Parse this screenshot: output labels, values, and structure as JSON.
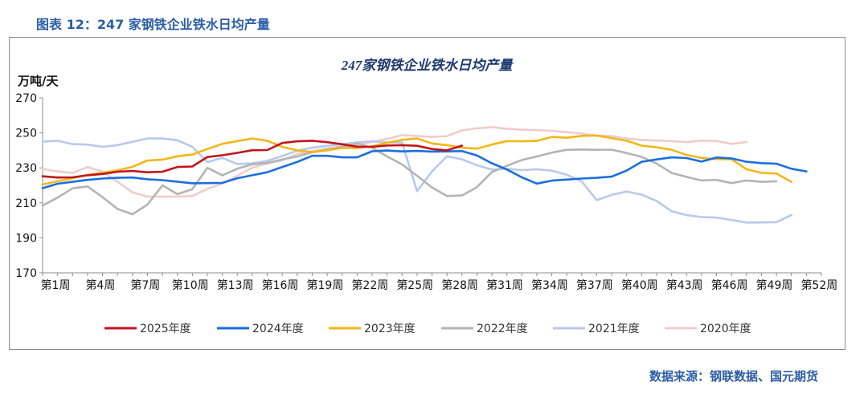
{
  "figure_caption": "图表 12：247 家钢铁企业铁水日均产量",
  "source_note": "数据来源：钢联数据、国元期货",
  "colors": {
    "caption": "#2b5da6",
    "title": "#1f3b70"
  },
  "chart_data": {
    "type": "line",
    "title": "247家钢铁企业铁水日均产量",
    "ylabel": "万吨/天",
    "xlabel": "",
    "ylim": [
      170,
      270
    ],
    "yticks": [
      170,
      190,
      210,
      230,
      250,
      270
    ],
    "x_tick_labels": [
      "第1周",
      "第4周",
      "第7周",
      "第10周",
      "第13周",
      "第16周",
      "第19周",
      "第22周",
      "第25周",
      "第28周",
      "第31周",
      "第34周",
      "第37周",
      "第40周",
      "第43周",
      "第46周",
      "第49周",
      "第52周"
    ],
    "x_tick_weeks": [
      1,
      4,
      7,
      10,
      13,
      16,
      19,
      22,
      25,
      28,
      31,
      34,
      37,
      40,
      43,
      46,
      49,
      52
    ],
    "x_range": [
      1,
      53
    ],
    "legend_position": "bottom",
    "grid": false,
    "series": [
      {
        "name": "2025年度",
        "color": "#c0161d",
        "start_week": 1,
        "values": [
          225.2,
          224.5,
          224.6,
          225.8,
          226.5,
          227.8,
          228.2,
          227.5,
          227.8,
          230.5,
          230.8,
          236.2,
          237.2,
          238.6,
          240.1,
          240.2,
          244.2,
          245.2,
          245.5,
          244.7,
          243.5,
          242.1,
          242.0,
          242.8,
          243.0,
          242.6,
          240.8,
          240.0,
          242.7
        ]
      },
      {
        "name": "2024年度",
        "color": "#1a6fdf",
        "start_week": 1,
        "values": [
          218.4,
          220.9,
          222.0,
          223.1,
          223.9,
          224.3,
          224.5,
          223.5,
          223.0,
          222.1,
          221.2,
          221.3,
          221.4,
          224.1,
          225.8,
          227.5,
          230.5,
          233.4,
          236.9,
          236.9,
          236.0,
          236.0,
          239.5,
          239.9,
          239.4,
          239.7,
          239.3,
          239.4,
          239.6,
          237.1,
          232.6,
          229.1,
          224.6,
          221.0,
          222.7,
          223.3,
          223.9,
          224.3,
          225.0,
          228.5,
          233.5,
          234.8,
          236.0,
          235.6,
          233.6,
          235.9,
          235.4,
          233.5,
          232.7,
          232.4,
          229.5,
          228.0
        ]
      },
      {
        "name": "2023年度",
        "color": "#f2b718",
        "start_week": 1,
        "values": [
          220.5,
          222.3,
          224.1,
          226.0,
          227.2,
          228.6,
          230.6,
          234.2,
          234.7,
          236.6,
          237.6,
          240.8,
          243.7,
          245.3,
          246.8,
          245.5,
          242.0,
          240.0,
          239.0,
          240.0,
          241.4,
          241.3,
          242.4,
          244.3,
          246.0,
          246.8,
          244.0,
          243.0,
          241.5,
          241.0,
          243.3,
          245.3,
          245.2,
          245.4,
          247.7,
          247.2,
          248.3,
          248.5,
          247.0,
          245.5,
          242.7,
          241.8,
          240.3,
          237.4,
          235.7,
          235.0,
          234.9,
          229.2,
          227.1,
          226.8,
          222.0
        ]
      },
      {
        "name": "2022年度",
        "color": "#b4b4b4",
        "start_week": 1,
        "values": [
          208.5,
          213.0,
          218.3,
          219.4,
          213.3,
          206.5,
          203.5,
          209.0,
          220.0,
          215.0,
          217.8,
          230.0,
          225.8,
          229.5,
          232.0,
          232.8,
          234.8,
          236.5,
          238.9,
          240.5,
          242.0,
          243.9,
          241.6,
          236.5,
          232.0,
          225.5,
          218.8,
          213.9,
          214.2,
          219.0,
          227.6,
          231.2,
          234.5,
          236.5,
          238.7,
          240.3,
          240.5,
          240.3,
          240.4,
          238.5,
          236.3,
          232.5,
          227.1,
          224.8,
          222.8,
          223.1,
          221.3,
          222.8,
          222.0,
          222.3
        ]
      },
      {
        "name": "2021年度",
        "color": "#b8c9ea",
        "start_week": 1,
        "values": [
          245.0,
          245.5,
          243.6,
          243.3,
          242.0,
          243.0,
          244.9,
          246.8,
          246.8,
          245.8,
          242.0,
          233.3,
          235.7,
          232.2,
          232.6,
          234.0,
          236.8,
          239.8,
          241.5,
          242.6,
          243.6,
          244.5,
          245.2,
          244.5,
          244.5,
          216.7,
          228.0,
          236.6,
          234.9,
          231.5,
          229.0,
          229.4,
          228.7,
          229.2,
          228.4,
          226.1,
          222.2,
          211.5,
          214.6,
          216.5,
          214.7,
          211.1,
          205.2,
          203.0,
          201.9,
          201.6,
          200.2,
          198.7,
          198.8,
          199.0,
          203.0
        ]
      },
      {
        "name": "2020年度",
        "color": "#efcccc",
        "start_week": 1,
        "values": [
          229.4,
          228.0,
          227.0,
          230.5,
          227.8,
          222.0,
          216.0,
          213.6,
          213.6,
          213.6,
          213.9,
          218.0,
          221.0,
          225.5,
          230.1,
          232.5,
          234.3,
          238.0,
          239.6,
          241.0,
          242.3,
          243.0,
          244.8,
          246.5,
          248.7,
          248.2,
          247.7,
          248.1,
          251.4,
          252.6,
          253.3,
          252.3,
          251.8,
          251.6,
          251.2,
          250.4,
          249.6,
          248.4,
          248.2,
          246.8,
          245.9,
          245.6,
          245.3,
          244.7,
          245.6,
          245.3,
          243.7,
          244.8
        ]
      }
    ]
  }
}
